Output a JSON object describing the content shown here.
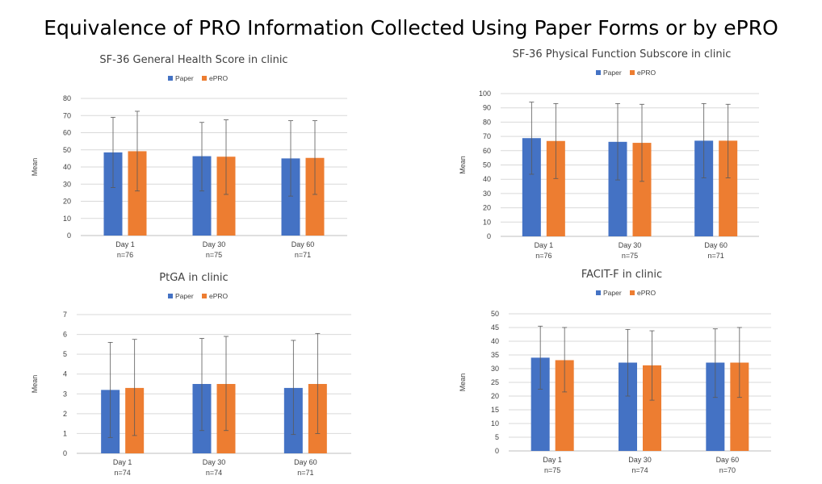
{
  "page_title": "Equivalence of PRO Information Collected Using Paper Forms or by ePRO",
  "chart_data": [
    {
      "type": "bar",
      "title": "SF-36 General Health Score in clinic",
      "ylabel": "Mean",
      "xlabel": "",
      "categories": [
        "Day 1",
        "Day 30",
        "Day 60"
      ],
      "category_n": [
        "n=76",
        "n=75",
        "n=71"
      ],
      "ylim": [
        0,
        80
      ],
      "yticks": [
        0,
        10,
        20,
        30,
        40,
        50,
        60,
        70,
        80
      ],
      "grid": true,
      "legend": "top",
      "series": [
        {
          "name": "Paper",
          "color": "#4472C4",
          "values": [
            48.5,
            46.3,
            45.0
          ],
          "err_low": [
            28,
            26,
            23
          ],
          "err_high": [
            69,
            66,
            67
          ]
        },
        {
          "name": "ePRO",
          "color": "#ED7D31",
          "values": [
            49.2,
            46.0,
            45.3
          ],
          "err_low": [
            26,
            24,
            24
          ],
          "err_high": [
            72.5,
            67.5,
            67
          ]
        }
      ]
    },
    {
      "type": "bar",
      "title": "SF-36 Physical Function Subscore in clinic",
      "ylabel": "Mean",
      "xlabel": "",
      "categories": [
        "Day 1",
        "Day 30",
        "Day 60"
      ],
      "category_n": [
        "n=76",
        "n=75",
        "n=71"
      ],
      "ylim": [
        0,
        100
      ],
      "yticks": [
        0,
        10,
        20,
        30,
        40,
        50,
        60,
        70,
        80,
        90,
        100
      ],
      "grid": true,
      "legend": "top",
      "series": [
        {
          "name": "Paper",
          "color": "#4472C4",
          "values": [
            68.8,
            66.2,
            67.0
          ],
          "err_low": [
            43.5,
            39.5,
            41.0
          ],
          "err_high": [
            94,
            93,
            93
          ]
        },
        {
          "name": "ePRO",
          "color": "#ED7D31",
          "values": [
            66.8,
            65.5,
            67.0
          ],
          "err_low": [
            40.5,
            38.5,
            41.0
          ],
          "err_high": [
            93,
            92.5,
            92.5
          ]
        }
      ]
    },
    {
      "type": "bar",
      "title": "PtGA in clinic",
      "ylabel": "Mean",
      "xlabel": "",
      "categories": [
        "Day 1",
        "Day 30",
        "Day 60"
      ],
      "category_n": [
        "n=74",
        "n=74",
        "n=71"
      ],
      "ylim": [
        0,
        7
      ],
      "yticks": [
        0,
        1,
        2,
        3,
        4,
        5,
        6,
        7
      ],
      "grid": true,
      "legend": "top",
      "series": [
        {
          "name": "Paper",
          "color": "#4472C4",
          "values": [
            3.2,
            3.5,
            3.3
          ],
          "err_low": [
            0.8,
            1.15,
            0.95
          ],
          "err_high": [
            5.6,
            5.8,
            5.7
          ]
        },
        {
          "name": "ePRO",
          "color": "#ED7D31",
          "values": [
            3.3,
            3.5,
            3.5
          ],
          "err_low": [
            0.9,
            1.15,
            1.0
          ],
          "err_high": [
            5.75,
            5.9,
            6.05
          ]
        }
      ]
    },
    {
      "type": "bar",
      "title": "FACIT-F in clinic",
      "ylabel": "Mean",
      "xlabel": "",
      "categories": [
        "Day 1",
        "Day 30",
        "Day 60"
      ],
      "category_n": [
        "n=75",
        "n=74",
        "n=70"
      ],
      "ylim": [
        0,
        50
      ],
      "yticks": [
        0,
        5,
        10,
        15,
        20,
        25,
        30,
        35,
        40,
        45,
        50
      ],
      "grid": true,
      "legend": "top",
      "series": [
        {
          "name": "Paper",
          "color": "#4472C4",
          "values": [
            34.0,
            32.2,
            32.2
          ],
          "err_low": [
            22.5,
            20.0,
            19.5
          ],
          "err_high": [
            45.5,
            44.3,
            44.5
          ]
        },
        {
          "name": "ePRO",
          "color": "#ED7D31",
          "values": [
            33.1,
            31.2,
            32.2
          ],
          "err_low": [
            21.5,
            18.5,
            19.5
          ],
          "err_high": [
            45,
            43.8,
            45
          ]
        }
      ]
    }
  ]
}
